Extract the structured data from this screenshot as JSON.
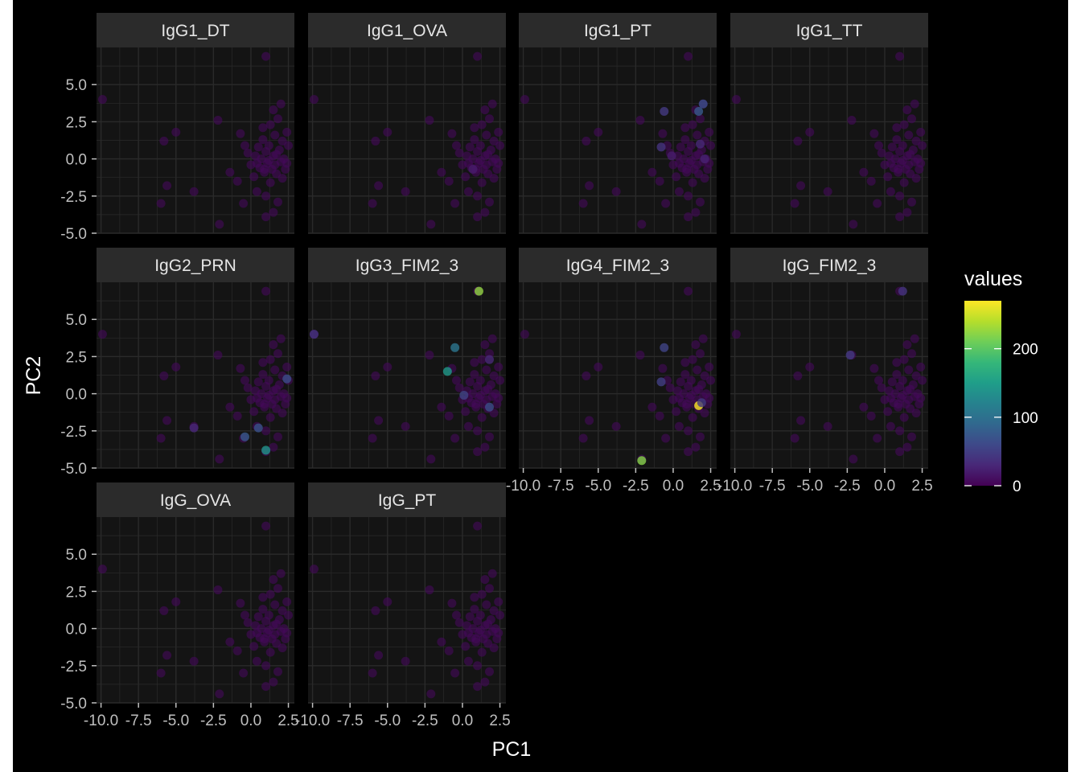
{
  "chart_data": {
    "type": "scatter",
    "facet_layout": "wrap",
    "xlabel": "PC1",
    "ylabel": "PC2",
    "xlim": [
      -10.3,
      2.9
    ],
    "ylim": [
      -5.0,
      7.5
    ],
    "x_ticks": [
      -10.0,
      -7.5,
      -5.0,
      -2.5,
      0.0,
      2.5
    ],
    "x_tick_labels": [
      "-10.0",
      "-7.5",
      "-5.0",
      "-2.5",
      "0.0",
      "2.5"
    ],
    "y_ticks": [
      -5.0,
      -2.5,
      0.0,
      2.5,
      5.0
    ],
    "y_tick_labels": [
      "-5.0",
      "-2.5",
      "0.0",
      "2.5",
      "5.0"
    ],
    "grid": true,
    "legend": {
      "title": "values",
      "position": "right",
      "min": 0,
      "max": 270,
      "ticks": [
        0,
        100,
        200
      ],
      "tick_labels": [
        "0",
        "100",
        "200"
      ],
      "colormap": "viridis"
    },
    "colors": {
      "background": "#000000",
      "panel": "#141414",
      "strip": "#2b2b2b",
      "grid": "#2a2a2a"
    },
    "points": [
      {
        "x": -9.9,
        "y": 4.0
      },
      {
        "x": 1.0,
        "y": 6.9
      },
      {
        "x": -5.8,
        "y": 1.2
      },
      {
        "x": -5.0,
        "y": 1.8
      },
      {
        "x": -5.6,
        "y": -1.8
      },
      {
        "x": -6.0,
        "y": -3.0
      },
      {
        "x": -3.8,
        "y": -2.2
      },
      {
        "x": -2.2,
        "y": 2.6
      },
      {
        "x": -2.1,
        "y": -4.4
      },
      {
        "x": -1.4,
        "y": -0.9
      },
      {
        "x": -0.7,
        "y": 1.7
      },
      {
        "x": -0.4,
        "y": 0.9
      },
      {
        "x": -0.5,
        "y": -3.0
      },
      {
        "x": -0.2,
        "y": 0.4
      },
      {
        "x": 0.0,
        "y": -0.4
      },
      {
        "x": 0.2,
        "y": -1.2
      },
      {
        "x": 0.3,
        "y": 0.2
      },
      {
        "x": 0.4,
        "y": -2.2
      },
      {
        "x": 0.5,
        "y": 0.8
      },
      {
        "x": 0.6,
        "y": -0.6
      },
      {
        "x": 0.7,
        "y": 0.0
      },
      {
        "x": 0.8,
        "y": 1.3
      },
      {
        "x": 0.8,
        "y": 2.1
      },
      {
        "x": 0.9,
        "y": -0.9
      },
      {
        "x": 1.0,
        "y": 0.5
      },
      {
        "x": 1.0,
        "y": -2.5
      },
      {
        "x": 1.0,
        "y": -3.9
      },
      {
        "x": 1.1,
        "y": -0.3
      },
      {
        "x": 1.2,
        "y": 0.9
      },
      {
        "x": 1.3,
        "y": 2.3
      },
      {
        "x": 1.3,
        "y": -1.6
      },
      {
        "x": 1.4,
        "y": -0.7
      },
      {
        "x": 1.5,
        "y": 3.3
      },
      {
        "x": 1.5,
        "y": 0.2
      },
      {
        "x": 1.5,
        "y": -3.6
      },
      {
        "x": 1.6,
        "y": 1.6
      },
      {
        "x": 1.6,
        "y": -0.4
      },
      {
        "x": 1.7,
        "y": -1.0
      },
      {
        "x": 1.8,
        "y": 2.7
      },
      {
        "x": 1.8,
        "y": -2.9
      },
      {
        "x": 1.9,
        "y": 0.6
      },
      {
        "x": 2.0,
        "y": -0.2
      },
      {
        "x": 2.0,
        "y": 3.7
      },
      {
        "x": 2.1,
        "y": 1.2
      },
      {
        "x": 2.1,
        "y": -1.3
      },
      {
        "x": 2.2,
        "y": 0.0
      },
      {
        "x": 2.3,
        "y": -0.7
      },
      {
        "x": 2.4,
        "y": 1.8
      },
      {
        "x": 2.5,
        "y": 0.9
      },
      {
        "x": 2.4,
        "y": -0.3
      },
      {
        "x": 0.9,
        "y": -0.7
      },
      {
        "x": 1.2,
        "y": -0.1
      },
      {
        "x": 0.4,
        "y": -0.3
      },
      {
        "x": 1.7,
        "y": 0.3
      },
      {
        "x": -0.9,
        "y": -1.5
      }
    ],
    "facets": [
      {
        "name": "IgG1_DT",
        "highlights": []
      },
      {
        "name": "IgG1_OVA",
        "highlights": [
          {
            "x": 0.7,
            "y": -0.7,
            "value": 20
          }
        ]
      },
      {
        "name": "IgG1_PT",
        "highlights": [
          {
            "x": 2.0,
            "y": 3.7,
            "value": 65
          },
          {
            "x": 1.7,
            "y": 3.2,
            "value": 75
          },
          {
            "x": -0.6,
            "y": 3.2,
            "value": 45
          },
          {
            "x": -0.8,
            "y": 0.8,
            "value": 40
          },
          {
            "x": 1.8,
            "y": 1.0,
            "value": 30
          },
          {
            "x": 2.1,
            "y": 0.0,
            "value": 25
          },
          {
            "x": -0.1,
            "y": 0.2,
            "value": 20
          }
        ]
      },
      {
        "name": "IgG1_TT",
        "highlights": []
      },
      {
        "name": "IgG2_PRN",
        "highlights": [
          {
            "x": 1.0,
            "y": -3.8,
            "value": 140
          },
          {
            "x": -0.4,
            "y": -2.9,
            "value": 75
          },
          {
            "x": 0.5,
            "y": -2.3,
            "value": 70
          },
          {
            "x": 2.4,
            "y": 1.0,
            "value": 65
          },
          {
            "x": -3.8,
            "y": -2.3,
            "value": 30
          }
        ]
      },
      {
        "name": "IgG3_FIM2_3",
        "highlights": [
          {
            "x": 1.1,
            "y": 6.9,
            "value": 225
          },
          {
            "x": -1.0,
            "y": 1.5,
            "value": 145
          },
          {
            "x": -0.5,
            "y": 3.1,
            "value": 105
          },
          {
            "x": 1.8,
            "y": -0.9,
            "value": 65
          },
          {
            "x": 0.1,
            "y": -0.1,
            "value": 55
          },
          {
            "x": -9.9,
            "y": 4.0,
            "value": 40
          },
          {
            "x": 1.8,
            "y": 2.3,
            "value": 30
          }
        ]
      },
      {
        "name": "IgG4_FIM2_3",
        "highlights": [
          {
            "x": -2.1,
            "y": -4.5,
            "value": 220
          },
          {
            "x": 1.7,
            "y": -0.8,
            "value": 270
          },
          {
            "x": -0.6,
            "y": 3.1,
            "value": 55
          },
          {
            "x": -0.8,
            "y": 0.8,
            "value": 50
          },
          {
            "x": 1.9,
            "y": -0.6,
            "value": 45
          }
        ]
      },
      {
        "name": "IgG_FIM2_3",
        "highlights": [
          {
            "x": -2.3,
            "y": 2.6,
            "value": 45
          },
          {
            "x": 1.2,
            "y": 6.9,
            "value": 40
          }
        ]
      },
      {
        "name": "IgG_OVA",
        "highlights": []
      },
      {
        "name": "IgG_PT",
        "highlights": []
      }
    ]
  }
}
